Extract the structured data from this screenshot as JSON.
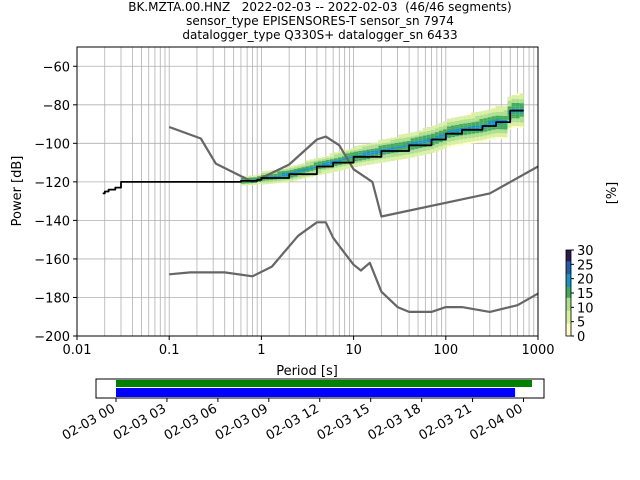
{
  "title_lines": [
    "BK.MZTA.00.HNZ   2022-02-03 -- 2022-02-03  (46/46 segments)",
    "sensor_type EPISENSORES-T sensor_sn 7974",
    "datalogger_type Q330S+ datalogger_sn 6433"
  ],
  "chart_data": [
    {
      "type": "heatmap",
      "xlabel": "Period [s]",
      "ylabel": "Power [dB]",
      "xscale": "log",
      "xlim": [
        0.01,
        1000
      ],
      "ylim": [
        -200,
        -50
      ],
      "xticks": [
        {
          "v": 0.01,
          "label": "0.01"
        },
        {
          "v": 0.1,
          "label": "0.1"
        },
        {
          "v": 1,
          "label": "1"
        },
        {
          "v": 10,
          "label": "10"
        },
        {
          "v": 100,
          "label": "100"
        },
        {
          "v": 1000,
          "label": "1000"
        }
      ],
      "yticks": [
        {
          "v": -60,
          "label": "−60"
        },
        {
          "v": -80,
          "label": "−80"
        },
        {
          "v": -100,
          "label": "−100"
        },
        {
          "v": -120,
          "label": "−120"
        },
        {
          "v": -140,
          "label": "−140"
        },
        {
          "v": -160,
          "label": "−160"
        },
        {
          "v": -180,
          "label": "−180"
        },
        {
          "v": -200,
          "label": "−200"
        }
      ],
      "grid": true,
      "colorbar": {
        "label": "[%]",
        "range": [
          0,
          30
        ],
        "ticks": [
          "0",
          "5",
          "10",
          "15",
          "20",
          "25",
          "30"
        ],
        "colors": [
          "#ffffcc",
          "#d9f0a3",
          "#addd8e",
          "#41ab5d",
          "#1d91c0",
          "#225ea8",
          "#2c1b4e"
        ]
      },
      "mode_line": [
        [
          0.019,
          -126
        ],
        [
          0.02,
          -125
        ],
        [
          0.022,
          -124
        ],
        [
          0.024,
          -124
        ],
        [
          0.026,
          -123
        ],
        [
          0.028,
          -123
        ],
        [
          0.03,
          -120
        ],
        [
          0.035,
          -120
        ],
        [
          0.1,
          -120
        ],
        [
          0.3,
          -120
        ],
        [
          0.6,
          -119.5
        ],
        [
          0.9,
          -119
        ],
        [
          1.0,
          -118
        ],
        [
          2,
          -116
        ],
        [
          4,
          -112
        ],
        [
          6,
          -110
        ],
        [
          10,
          -107
        ],
        [
          20,
          -104
        ],
        [
          40,
          -101
        ],
        [
          70,
          -98
        ],
        [
          100,
          -95
        ],
        [
          150,
          -93
        ],
        [
          250,
          -91
        ],
        [
          350,
          -89
        ],
        [
          450,
          -89
        ],
        [
          500,
          -83
        ],
        [
          700,
          -83
        ]
      ],
      "nhnm": [
        [
          0.1,
          -168
        ],
        [
          0.17,
          -167
        ],
        [
          0.4,
          -167
        ],
        [
          0.8,
          -169
        ],
        [
          1.3,
          -164
        ],
        [
          2.5,
          -148
        ],
        [
          4,
          -141
        ],
        [
          5,
          -141
        ],
        [
          6,
          -149
        ],
        [
          8,
          -157
        ],
        [
          10,
          -163
        ],
        [
          12,
          -166
        ],
        [
          15,
          -162
        ],
        [
          20,
          -177
        ],
        [
          30,
          -185
        ],
        [
          40,
          -187.5
        ],
        [
          70,
          -187.5
        ],
        [
          100,
          -185
        ],
        [
          150,
          -185
        ],
        [
          300,
          -187.5
        ],
        [
          600,
          -184
        ],
        [
          1000,
          -178
        ]
      ],
      "nlnm": [
        [
          0.1,
          -91.5
        ],
        [
          0.22,
          -97.5
        ],
        [
          0.32,
          -110.5
        ],
        [
          0.8,
          -120
        ],
        [
          1.0,
          -118
        ],
        [
          2,
          -111
        ],
        [
          4,
          -98
        ],
        [
          5,
          -96.5
        ],
        [
          7,
          -101
        ],
        [
          10,
          -113.5
        ],
        [
          16,
          -120
        ],
        [
          20,
          -138
        ],
        [
          300,
          -126
        ],
        [
          1000,
          -112
        ]
      ]
    },
    {
      "type": "bar",
      "orientation": "horizontal",
      "xlim": [
        "2022-02-03 00:00",
        "2022-02-04 01:00"
      ],
      "xticks": [
        "02-03 00",
        "02-03 03",
        "02-03 06",
        "02-03 09",
        "02-03 12",
        "02-03 15",
        "02-03 18",
        "02-03 21",
        "02-04 00"
      ],
      "series": [
        {
          "color": "#008000",
          "start": "2022-02-03 00:00",
          "end": "2022-02-04 00:30"
        },
        {
          "color": "#0000ff",
          "start": "2022-02-03 00:00",
          "end": "2022-02-03 23:30"
        }
      ]
    }
  ]
}
